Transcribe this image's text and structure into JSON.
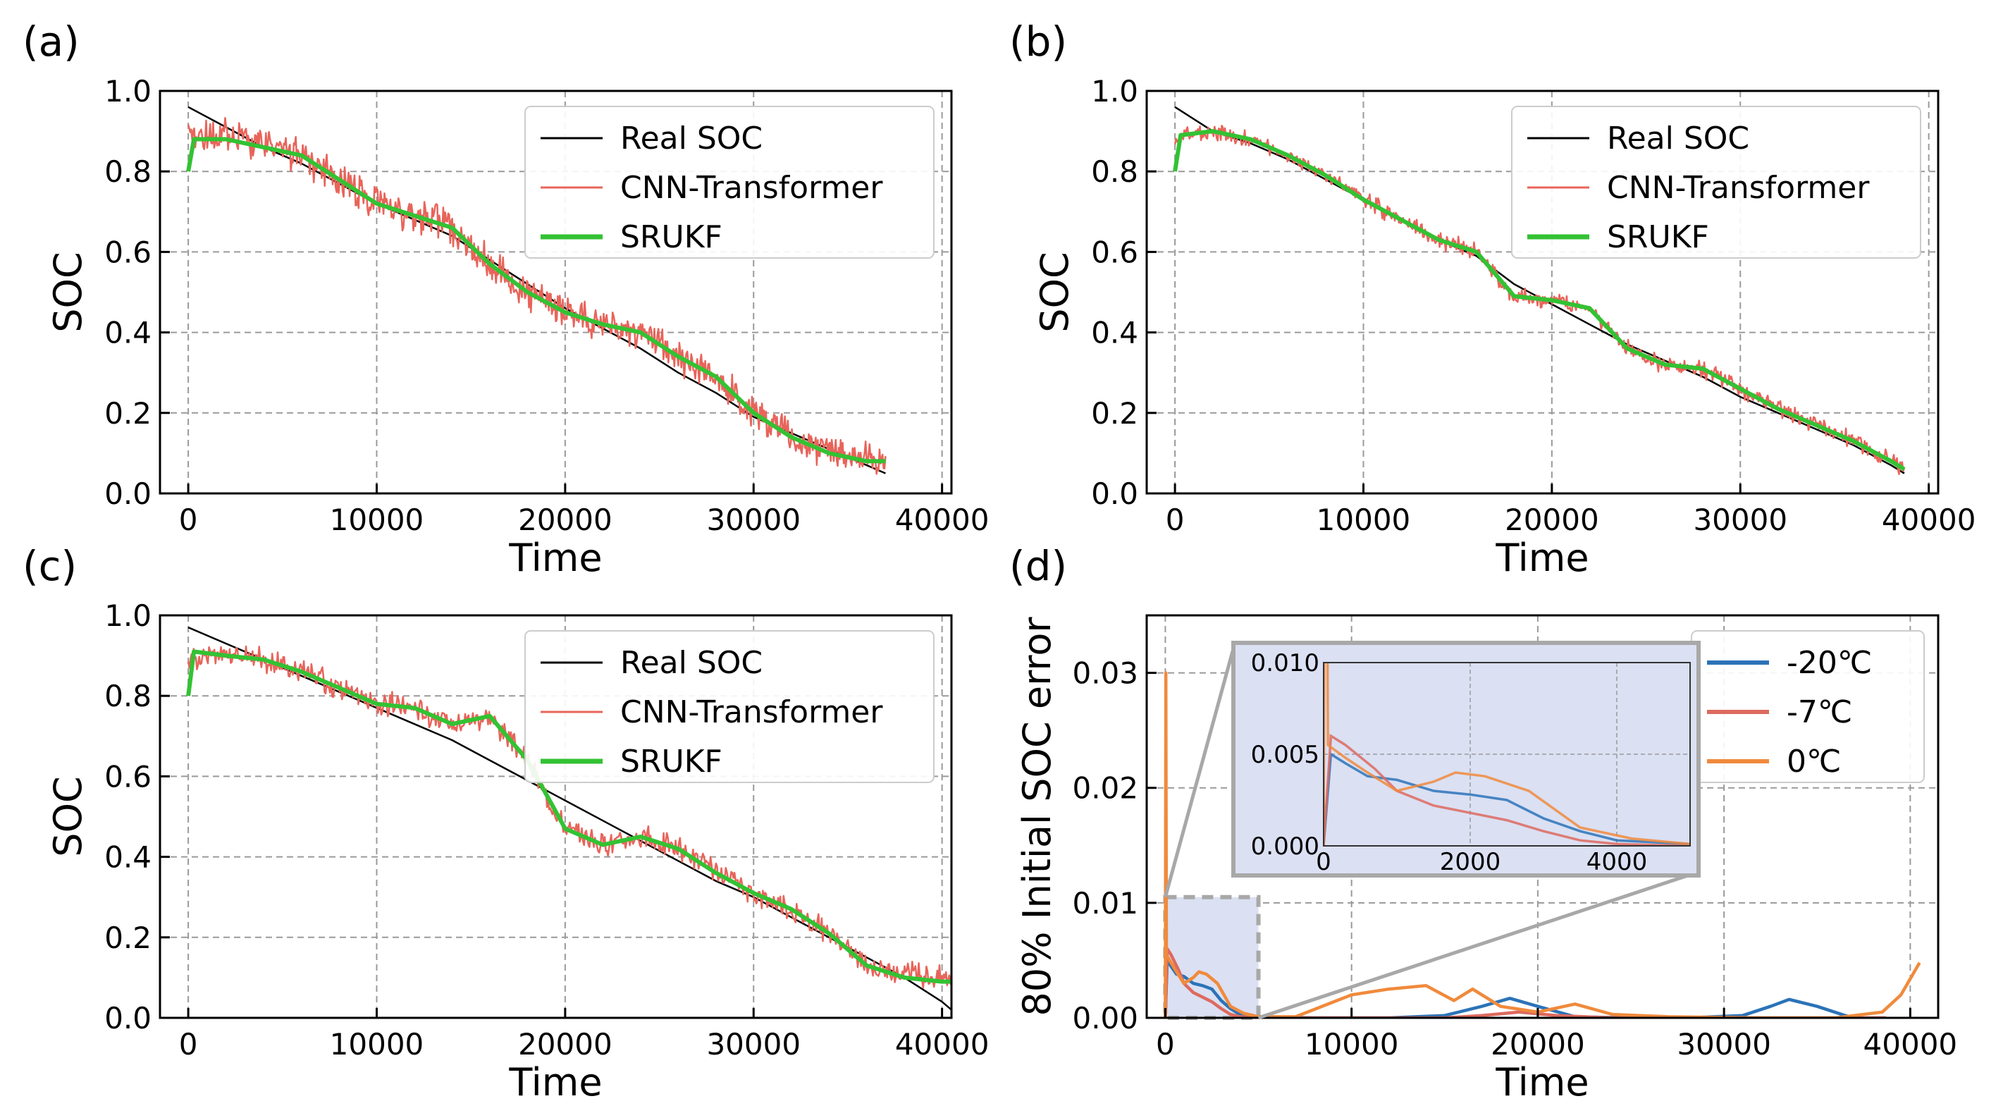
{
  "colors": {
    "real_soc": "#000000",
    "cnn_transformer": "#e8645a",
    "srukf": "#33c233",
    "neg20C": "#2b73b8",
    "neg7C": "#dd6a5f",
    "zeroC": "#f08a3c",
    "inset_bg": "#dbe0f3",
    "grid": "#9a9a9a",
    "zoom_box": "#a8a8a8"
  },
  "chart_data": [
    {
      "id": "a",
      "tag": "(a)",
      "type": "line",
      "xlabel": "Time",
      "ylabel": "SOC",
      "xlim": [
        -1500,
        40500
      ],
      "ylim": [
        0.0,
        1.0
      ],
      "xticks": [
        0,
        10000,
        20000,
        30000,
        40000
      ],
      "xtick_labels": [
        "0",
        "10000",
        "20000",
        "30000",
        "40000"
      ],
      "yticks": [
        0.0,
        0.2,
        0.4,
        0.6,
        0.8,
        1.0
      ],
      "ytick_labels": [
        "0.0",
        "0.2",
        "0.4",
        "0.6",
        "0.8",
        "1.0"
      ],
      "grid": true,
      "legend_position": "top-right",
      "series": [
        {
          "name": "Real SOC",
          "key": "real",
          "x": [
            0,
            2000,
            4000,
            6000,
            8000,
            10000,
            12000,
            14000,
            16000,
            18000,
            20000,
            22000,
            24000,
            26000,
            28000,
            30000,
            32000,
            34000,
            36000,
            37000
          ],
          "y": [
            0.96,
            0.91,
            0.86,
            0.82,
            0.77,
            0.72,
            0.68,
            0.64,
            0.58,
            0.52,
            0.46,
            0.41,
            0.36,
            0.3,
            0.25,
            0.19,
            0.15,
            0.11,
            0.07,
            0.05
          ]
        },
        {
          "name": "CNN-Transformer",
          "key": "cnn",
          "x": [
            0,
            2000,
            4000,
            6000,
            8000,
            10000,
            12000,
            14000,
            16000,
            18000,
            20000,
            22000,
            24000,
            26000,
            28000,
            30000,
            32000,
            34000,
            36000,
            37000
          ],
          "y": [
            0.88,
            0.89,
            0.87,
            0.84,
            0.78,
            0.72,
            0.69,
            0.66,
            0.57,
            0.5,
            0.45,
            0.42,
            0.4,
            0.34,
            0.29,
            0.2,
            0.14,
            0.1,
            0.08,
            0.08
          ],
          "noise": 0.05
        },
        {
          "name": "SRUKF",
          "key": "srukf",
          "x": [
            0,
            300,
            2000,
            4000,
            6000,
            8000,
            10000,
            12000,
            14000,
            16000,
            18000,
            20000,
            22000,
            24000,
            26000,
            28000,
            30000,
            32000,
            34000,
            36000,
            37000
          ],
          "y": [
            0.8,
            0.88,
            0.88,
            0.86,
            0.84,
            0.78,
            0.72,
            0.69,
            0.66,
            0.57,
            0.5,
            0.45,
            0.42,
            0.4,
            0.34,
            0.29,
            0.2,
            0.14,
            0.1,
            0.08,
            0.08
          ]
        }
      ]
    },
    {
      "id": "b",
      "tag": "(b)",
      "type": "line",
      "xlabel": "Time",
      "ylabel": "SOC",
      "xlim": [
        -1500,
        40500
      ],
      "ylim": [
        0.0,
        1.0
      ],
      "xticks": [
        0,
        10000,
        20000,
        30000,
        40000
      ],
      "xtick_labels": [
        "0",
        "10000",
        "20000",
        "30000",
        "40000"
      ],
      "yticks": [
        0.0,
        0.2,
        0.4,
        0.6,
        0.8,
        1.0
      ],
      "ytick_labels": [
        "0.0",
        "0.2",
        "0.4",
        "0.6",
        "0.8",
        "1.0"
      ],
      "grid": true,
      "legend_position": "top-right",
      "series": [
        {
          "name": "Real SOC",
          "key": "real",
          "x": [
            0,
            2000,
            4000,
            6000,
            8000,
            10000,
            12000,
            14000,
            16000,
            18000,
            20000,
            22000,
            24000,
            26000,
            28000,
            30000,
            32000,
            34000,
            36000,
            38000,
            38700
          ],
          "y": [
            0.96,
            0.9,
            0.87,
            0.83,
            0.78,
            0.73,
            0.68,
            0.63,
            0.59,
            0.52,
            0.47,
            0.42,
            0.37,
            0.33,
            0.29,
            0.24,
            0.2,
            0.16,
            0.12,
            0.07,
            0.05
          ]
        },
        {
          "name": "CNN-Transformer",
          "key": "cnn",
          "x": [
            0,
            2000,
            4000,
            6000,
            8000,
            10000,
            12000,
            14000,
            16000,
            18000,
            20000,
            22000,
            24000,
            26000,
            28000,
            30000,
            32000,
            34000,
            36000,
            38000,
            38700
          ],
          "y": [
            0.88,
            0.9,
            0.88,
            0.84,
            0.79,
            0.73,
            0.68,
            0.63,
            0.6,
            0.49,
            0.48,
            0.46,
            0.36,
            0.32,
            0.31,
            0.26,
            0.21,
            0.17,
            0.13,
            0.08,
            0.06
          ],
          "noise": 0.025
        },
        {
          "name": "SRUKF",
          "key": "srukf",
          "x": [
            0,
            300,
            2000,
            4000,
            6000,
            8000,
            10000,
            12000,
            14000,
            16000,
            18000,
            20000,
            22000,
            24000,
            26000,
            28000,
            30000,
            32000,
            34000,
            36000,
            38000,
            38700
          ],
          "y": [
            0.8,
            0.89,
            0.9,
            0.88,
            0.84,
            0.79,
            0.73,
            0.68,
            0.63,
            0.6,
            0.49,
            0.48,
            0.46,
            0.36,
            0.32,
            0.31,
            0.26,
            0.21,
            0.17,
            0.13,
            0.08,
            0.06
          ]
        }
      ]
    },
    {
      "id": "c",
      "tag": "(c)",
      "type": "line",
      "xlabel": "Time",
      "ylabel": "SOC",
      "xlim": [
        -1500,
        40500
      ],
      "ylim": [
        0.0,
        1.0
      ],
      "xticks": [
        0,
        10000,
        20000,
        30000,
        40000
      ],
      "xtick_labels": [
        "0",
        "10000",
        "20000",
        "30000",
        "40000"
      ],
      "yticks": [
        0.0,
        0.2,
        0.4,
        0.6,
        0.8,
        1.0
      ],
      "ytick_labels": [
        "0.0",
        "0.2",
        "0.4",
        "0.6",
        "0.8",
        "1.0"
      ],
      "grid": true,
      "legend_position": "top-right",
      "series": [
        {
          "name": "Real SOC",
          "key": "real",
          "x": [
            0,
            2000,
            4000,
            6000,
            8000,
            10000,
            12000,
            14000,
            16000,
            18000,
            20000,
            22000,
            24000,
            26000,
            28000,
            30000,
            32000,
            34000,
            36000,
            38000,
            40000,
            40500
          ],
          "y": [
            0.97,
            0.93,
            0.89,
            0.85,
            0.81,
            0.77,
            0.73,
            0.69,
            0.64,
            0.59,
            0.54,
            0.49,
            0.44,
            0.39,
            0.34,
            0.3,
            0.25,
            0.2,
            0.15,
            0.1,
            0.04,
            0.02
          ]
        },
        {
          "name": "CNN-Transformer",
          "key": "cnn",
          "x": [
            0,
            2000,
            4000,
            6000,
            8000,
            10000,
            12000,
            14000,
            16000,
            18000,
            20000,
            22000,
            24000,
            26000,
            28000,
            30000,
            32000,
            34000,
            36000,
            38000,
            40000,
            40500
          ],
          "y": [
            0.89,
            0.9,
            0.89,
            0.86,
            0.82,
            0.78,
            0.77,
            0.73,
            0.75,
            0.64,
            0.47,
            0.43,
            0.45,
            0.42,
            0.36,
            0.31,
            0.27,
            0.21,
            0.13,
            0.11,
            0.1,
            0.1
          ],
          "noise": 0.035
        },
        {
          "name": "SRUKF",
          "key": "srukf",
          "x": [
            0,
            300,
            2000,
            4000,
            6000,
            8000,
            10000,
            12000,
            14000,
            16000,
            18000,
            20000,
            22000,
            24000,
            26000,
            28000,
            30000,
            32000,
            34000,
            36000,
            38000,
            40000,
            40500
          ],
          "y": [
            0.8,
            0.91,
            0.9,
            0.89,
            0.86,
            0.82,
            0.78,
            0.77,
            0.73,
            0.75,
            0.64,
            0.47,
            0.43,
            0.45,
            0.42,
            0.36,
            0.31,
            0.27,
            0.21,
            0.13,
            0.1,
            0.09,
            0.09
          ]
        }
      ]
    },
    {
      "id": "d",
      "tag": "(d)",
      "type": "line",
      "xlabel": "Time",
      "ylabel": "80% Initial SOC error",
      "xlim": [
        -1000,
        41500
      ],
      "ylim": [
        0.0,
        0.035
      ],
      "xticks": [
        0,
        10000,
        20000,
        30000,
        40000
      ],
      "xtick_labels": [
        "0",
        "10000",
        "20000",
        "30000",
        "40000"
      ],
      "yticks": [
        0.0,
        0.01,
        0.02,
        0.03
      ],
      "ytick_labels": [
        "0.00",
        "0.01",
        "0.02",
        "0.03"
      ],
      "grid": true,
      "legend_position": "top-right",
      "zoom_region": {
        "x": [
          0,
          5000
        ],
        "y": [
          0.0,
          0.0105
        ]
      },
      "series": [
        {
          "name": "-20℃",
          "key": "neg20",
          "x": [
            0,
            100,
            300,
            600,
            1000,
            1500,
            2000,
            2500,
            3000,
            3500,
            4000,
            5000,
            8000,
            12000,
            15000,
            17000,
            18500,
            20000,
            22000,
            25000,
            28000,
            31000,
            32500,
            33500,
            35000,
            36500,
            37000
          ],
          "y": [
            0.0,
            0.005,
            0.0045,
            0.0038,
            0.0036,
            0.003,
            0.0028,
            0.0025,
            0.0015,
            0.0008,
            0.0003,
            0.0001,
            0.0,
            0.0,
            0.0002,
            0.001,
            0.0017,
            0.001,
            0.0001,
            0.0,
            0.0,
            0.0002,
            0.001,
            0.0016,
            0.001,
            0.0002,
            0.0
          ]
        },
        {
          "name": "-7℃",
          "key": "neg7",
          "x": [
            0,
            100,
            300,
            700,
            1000,
            1500,
            2000,
            2500,
            3000,
            3500,
            4000,
            5000,
            8000,
            12000,
            15000,
            17000,
            19000,
            21000,
            24000,
            30000,
            35000,
            38700
          ],
          "y": [
            0.0,
            0.006,
            0.0055,
            0.0042,
            0.003,
            0.0022,
            0.0018,
            0.0014,
            0.0008,
            0.0003,
            0.0001,
            0.0,
            0.0,
            0.0,
            0.0,
            0.0002,
            0.0005,
            0.0002,
            0.0,
            0.0,
            0.0,
            0.0
          ]
        },
        {
          "name": "0℃",
          "key": "zero",
          "x": [
            0,
            30,
            60,
            300,
            600,
            1000,
            1500,
            1800,
            2200,
            2800,
            3500,
            4200,
            5000,
            7000,
            10000,
            12000,
            14000,
            15500,
            16500,
            18000,
            20000,
            22000,
            24000,
            27000,
            32000,
            36000,
            38500,
            39500,
            40500
          ],
          "y": [
            0.0,
            0.03,
            0.0055,
            0.0048,
            0.004,
            0.003,
            0.0035,
            0.004,
            0.0038,
            0.003,
            0.001,
            0.0004,
            0.0001,
            0.0001,
            0.002,
            0.0025,
            0.0028,
            0.0015,
            0.0025,
            0.001,
            0.0005,
            0.0012,
            0.0003,
            0.0001,
            0.0,
            0.0,
            0.0005,
            0.002,
            0.0048
          ]
        }
      ],
      "inset": {
        "xlim": [
          0,
          5000
        ],
        "ylim": [
          0.0,
          0.01
        ],
        "xticks": [
          0,
          2000,
          4000
        ],
        "xtick_labels": [
          "0",
          "2000",
          "4000"
        ],
        "yticks": [
          0.0,
          0.005,
          0.01
        ],
        "ytick_labels": [
          "0.000",
          "0.005",
          "0.010"
        ],
        "grid": true
      }
    }
  ]
}
